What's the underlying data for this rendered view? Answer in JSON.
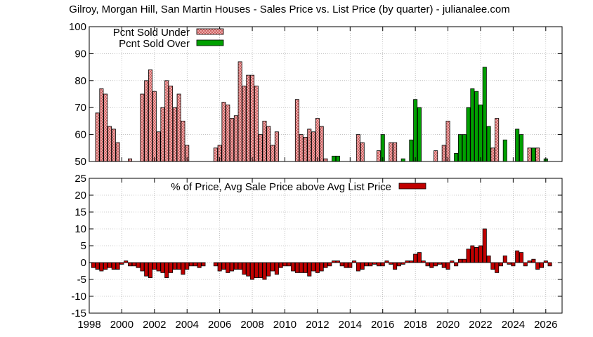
{
  "title": "Gilroy, Morgan Hill, San Martin Houses - Sales Price vs. List Price (by quarter) - julianalee.com",
  "colors": {
    "under": "#f4b8b8",
    "over": "#00a000",
    "pct": "#c00000"
  },
  "chart_data": [
    {
      "type": "bar",
      "title": "",
      "xlim": [
        1998,
        2027
      ],
      "ylim": [
        50,
        100
      ],
      "yticks": [
        50,
        60,
        70,
        80,
        90,
        100
      ],
      "xticks": [
        1998,
        2000,
        2002,
        2004,
        2006,
        2008,
        2010,
        2012,
        2014,
        2016,
        2018,
        2020,
        2022,
        2024,
        2026
      ],
      "grid": true,
      "legend_position": "top-left",
      "series": [
        {
          "name": "Pcnt Sold Under",
          "points": [
            [
              1998.5,
              68
            ],
            [
              1998.75,
              77
            ],
            [
              1999.0,
              75
            ],
            [
              1999.25,
              63
            ],
            [
              1999.5,
              62
            ],
            [
              1999.75,
              57
            ],
            [
              2000.5,
              51
            ],
            [
              2001.25,
              75
            ],
            [
              2001.5,
              80
            ],
            [
              2001.75,
              84
            ],
            [
              2002.0,
              76
            ],
            [
              2002.25,
              61
            ],
            [
              2002.5,
              70
            ],
            [
              2002.75,
              80
            ],
            [
              2003.0,
              78
            ],
            [
              2003.25,
              70
            ],
            [
              2003.5,
              75
            ],
            [
              2003.75,
              65
            ],
            [
              2004.0,
              56
            ],
            [
              2005.75,
              55
            ],
            [
              2006.0,
              56
            ],
            [
              2006.25,
              72
            ],
            [
              2006.5,
              71
            ],
            [
              2006.75,
              66
            ],
            [
              2007.0,
              67
            ],
            [
              2007.25,
              87
            ],
            [
              2007.5,
              78
            ],
            [
              2007.75,
              82
            ],
            [
              2008.0,
              82
            ],
            [
              2008.25,
              78
            ],
            [
              2008.5,
              60
            ],
            [
              2008.75,
              65
            ],
            [
              2009.0,
              63
            ],
            [
              2009.25,
              56
            ],
            [
              2009.5,
              61
            ],
            [
              2010.75,
              73
            ],
            [
              2011.0,
              60
            ],
            [
              2011.25,
              59
            ],
            [
              2011.5,
              62
            ],
            [
              2011.75,
              61
            ],
            [
              2012.0,
              66
            ],
            [
              2012.25,
              63
            ],
            [
              2012.5,
              51
            ],
            [
              2014.5,
              60
            ],
            [
              2014.75,
              57
            ],
            [
              2015.75,
              54
            ],
            [
              2016.5,
              57
            ],
            [
              2016.75,
              57
            ],
            [
              2019.25,
              54
            ],
            [
              2019.75,
              56
            ],
            [
              2020.0,
              65
            ],
            [
              2022.75,
              55
            ],
            [
              2023.0,
              66
            ],
            [
              2025.0,
              55
            ],
            [
              2025.5,
              55
            ]
          ]
        },
        {
          "name": "Pcnt Sold Over",
          "points": [
            [
              2013.0,
              52
            ],
            [
              2013.25,
              52
            ],
            [
              2016.0,
              60
            ],
            [
              2017.25,
              51
            ],
            [
              2017.75,
              58
            ],
            [
              2018.0,
              73
            ],
            [
              2018.25,
              70
            ],
            [
              2020.5,
              53
            ],
            [
              2020.75,
              60
            ],
            [
              2021.0,
              60
            ],
            [
              2021.25,
              70
            ],
            [
              2021.5,
              77
            ],
            [
              2021.75,
              76
            ],
            [
              2022.0,
              71
            ],
            [
              2022.25,
              85
            ],
            [
              2022.5,
              63
            ],
            [
              2023.5,
              58
            ],
            [
              2024.25,
              62
            ],
            [
              2024.5,
              60
            ],
            [
              2025.25,
              55
            ],
            [
              2026.0,
              51
            ]
          ]
        }
      ]
    },
    {
      "type": "bar",
      "title": "",
      "xlim": [
        1998,
        2027
      ],
      "ylim": [
        -15,
        25
      ],
      "yticks": [
        -15,
        -10,
        -5,
        0,
        5,
        10,
        15,
        20,
        25
      ],
      "xticks": [
        1998,
        2000,
        2002,
        2004,
        2006,
        2008,
        2010,
        2012,
        2014,
        2016,
        2018,
        2020,
        2022,
        2024,
        2026
      ],
      "grid": true,
      "legend_position": "top-center",
      "series": [
        {
          "name": "% of Price, Avg Sale Price above Avg List Price",
          "points": [
            [
              1998.25,
              -1.5
            ],
            [
              1998.5,
              -2
            ],
            [
              1998.75,
              -2.5
            ],
            [
              1999.0,
              -2
            ],
            [
              1999.25,
              -1.5
            ],
            [
              1999.5,
              -2
            ],
            [
              1999.75,
              -2
            ],
            [
              2000.0,
              -0.5
            ],
            [
              2000.25,
              0.5
            ],
            [
              2000.5,
              -1
            ],
            [
              2000.75,
              -1
            ],
            [
              2001.0,
              -1.5
            ],
            [
              2001.25,
              -2.5
            ],
            [
              2001.5,
              -4
            ],
            [
              2001.75,
              -4.5
            ],
            [
              2002.0,
              -2
            ],
            [
              2002.25,
              -2.5
            ],
            [
              2002.5,
              -3
            ],
            [
              2002.75,
              -4.5
            ],
            [
              2003.0,
              -3
            ],
            [
              2003.25,
              -2
            ],
            [
              2003.5,
              -2
            ],
            [
              2003.75,
              -3.5
            ],
            [
              2004.0,
              -2
            ],
            [
              2004.25,
              -1
            ],
            [
              2004.5,
              -1
            ],
            [
              2004.75,
              -1.5
            ],
            [
              2005.0,
              -1
            ],
            [
              2005.75,
              -1
            ],
            [
              2006.0,
              -2.5
            ],
            [
              2006.25,
              -2
            ],
            [
              2006.5,
              -3
            ],
            [
              2006.75,
              -2.5
            ],
            [
              2007.0,
              -2
            ],
            [
              2007.25,
              -2
            ],
            [
              2007.5,
              -3.5
            ],
            [
              2007.75,
              -4
            ],
            [
              2008.0,
              -5
            ],
            [
              2008.25,
              -4.5
            ],
            [
              2008.5,
              -4.5
            ],
            [
              2008.75,
              -5
            ],
            [
              2009.0,
              -4
            ],
            [
              2009.25,
              -2.5
            ],
            [
              2009.5,
              -3.5
            ],
            [
              2009.75,
              -1.5
            ],
            [
              2010.0,
              -1
            ],
            [
              2010.25,
              -1
            ],
            [
              2010.5,
              -2.5
            ],
            [
              2010.75,
              -3
            ],
            [
              2011.0,
              -3
            ],
            [
              2011.25,
              -3
            ],
            [
              2011.5,
              -4
            ],
            [
              2011.75,
              -2.5
            ],
            [
              2012.0,
              -3
            ],
            [
              2012.25,
              -2.5
            ],
            [
              2012.5,
              -1.5
            ],
            [
              2012.75,
              -1
            ],
            [
              2013.0,
              0.5
            ],
            [
              2013.25,
              0.5
            ],
            [
              2013.5,
              -1
            ],
            [
              2013.75,
              -1.5
            ],
            [
              2014.0,
              -1.5
            ],
            [
              2014.25,
              0.5
            ],
            [
              2014.5,
              -2.5
            ],
            [
              2014.75,
              -2
            ],
            [
              2015.0,
              -1
            ],
            [
              2015.25,
              -1
            ],
            [
              2015.5,
              -0.5
            ],
            [
              2015.75,
              -1
            ],
            [
              2016.0,
              -1
            ],
            [
              2016.25,
              0.5
            ],
            [
              2016.5,
              -0.5
            ],
            [
              2016.75,
              -2
            ],
            [
              2017.0,
              -1
            ],
            [
              2017.25,
              -0.5
            ],
            [
              2017.5,
              0.5
            ],
            [
              2017.75,
              0.5
            ],
            [
              2018.0,
              2.5
            ],
            [
              2018.25,
              3
            ],
            [
              2018.5,
              0.5
            ],
            [
              2018.75,
              -1
            ],
            [
              2019.0,
              -1.5
            ],
            [
              2019.25,
              -1
            ],
            [
              2019.5,
              -0.5
            ],
            [
              2019.75,
              -1.5
            ],
            [
              2020.0,
              -2
            ],
            [
              2020.25,
              0.5
            ],
            [
              2020.5,
              -1
            ],
            [
              2020.75,
              1
            ],
            [
              2021.0,
              1
            ],
            [
              2021.25,
              4
            ],
            [
              2021.5,
              5
            ],
            [
              2021.75,
              4.5
            ],
            [
              2022.0,
              5
            ],
            [
              2022.25,
              10
            ],
            [
              2022.5,
              2
            ],
            [
              2022.75,
              -2
            ],
            [
              2023.0,
              -3
            ],
            [
              2023.25,
              -1
            ],
            [
              2023.5,
              2
            ],
            [
              2023.75,
              -0.5
            ],
            [
              2024.0,
              -1
            ],
            [
              2024.25,
              3.5
            ],
            [
              2024.5,
              3
            ],
            [
              2024.75,
              -1
            ],
            [
              2025.0,
              0.5
            ],
            [
              2025.25,
              1
            ],
            [
              2025.5,
              -2
            ],
            [
              2025.75,
              -1.5
            ],
            [
              2026.0,
              0.5
            ],
            [
              2026.25,
              -1
            ]
          ]
        }
      ]
    }
  ]
}
